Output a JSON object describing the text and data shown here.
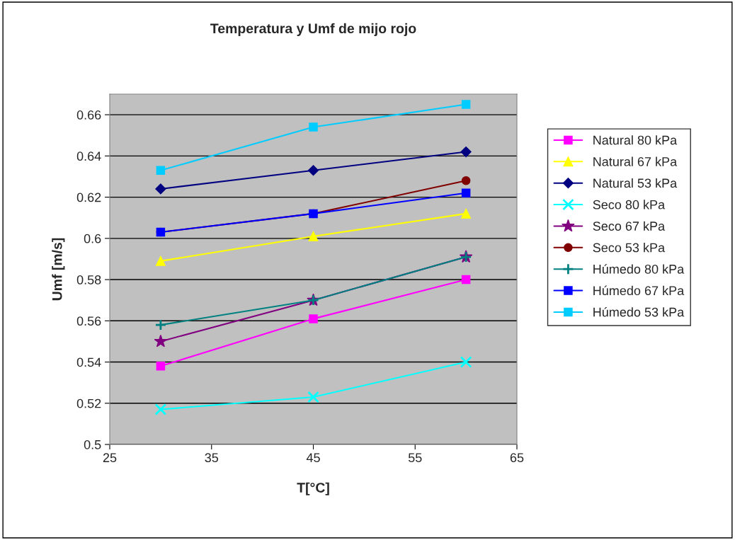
{
  "chart_data": {
    "type": "line",
    "title": "Temperatura y Umf de mijo rojo",
    "xlabel": "T[°C]",
    "ylabel": "Umf [m/s]",
    "x": [
      30,
      45,
      60
    ],
    "xlim": [
      25,
      65
    ],
    "xticks": [
      25,
      35,
      45,
      55,
      65
    ],
    "ylim": [
      0.5,
      0.67
    ],
    "yticks": [
      0.5,
      {
        "value": 0.52,
        "label": "0.52"
      },
      {
        "value": 0.54,
        "label": "0.54"
      },
      {
        "value": 0.56,
        "label": "0.56"
      },
      {
        "value": 0.58,
        "label": "0.58"
      },
      {
        "value": 0.6,
        "label": "0.6"
      },
      {
        "value": 0.62,
        "label": "0.62"
      },
      {
        "value": 0.64,
        "label": "0.64"
      },
      {
        "value": 0.66,
        "label": "0.66"
      }
    ],
    "grid": "y",
    "legend": "right",
    "series": [
      {
        "name": "Natural 80 kPa",
        "color": "#ff00ff",
        "marker": "square",
        "values": [
          0.538,
          0.561,
          0.58
        ]
      },
      {
        "name": "Natural 67 kPa",
        "color": "#ffff00",
        "marker": "triangle",
        "values": [
          0.589,
          0.601,
          0.612
        ]
      },
      {
        "name": "Natural 53 kPa",
        "color": "#000080",
        "marker": "diamond",
        "values": [
          0.624,
          0.633,
          0.642
        ]
      },
      {
        "name": "Seco 80 kPa",
        "color": "#00ffff",
        "marker": "cross",
        "values": [
          0.517,
          0.523,
          0.54
        ]
      },
      {
        "name": "Seco 67 kPa",
        "color": "#800080",
        "marker": "star",
        "values": [
          0.55,
          0.57,
          0.591
        ]
      },
      {
        "name": "Seco 53 kPa",
        "color": "#800000",
        "marker": "circle",
        "values": [
          0.603,
          0.612,
          0.628
        ]
      },
      {
        "name": "Húmedo 80 kPa",
        "color": "#008080",
        "marker": "plus",
        "values": [
          0.558,
          0.57,
          0.591
        ]
      },
      {
        "name": "Húmedo 67 kPa",
        "color": "#0000ff",
        "marker": "square",
        "values": [
          0.603,
          0.612,
          0.622
        ]
      },
      {
        "name": "Húmedo 53 kPa",
        "color": "#00ccff",
        "marker": "square",
        "values": [
          0.633,
          0.654,
          0.665
        ]
      }
    ]
  }
}
